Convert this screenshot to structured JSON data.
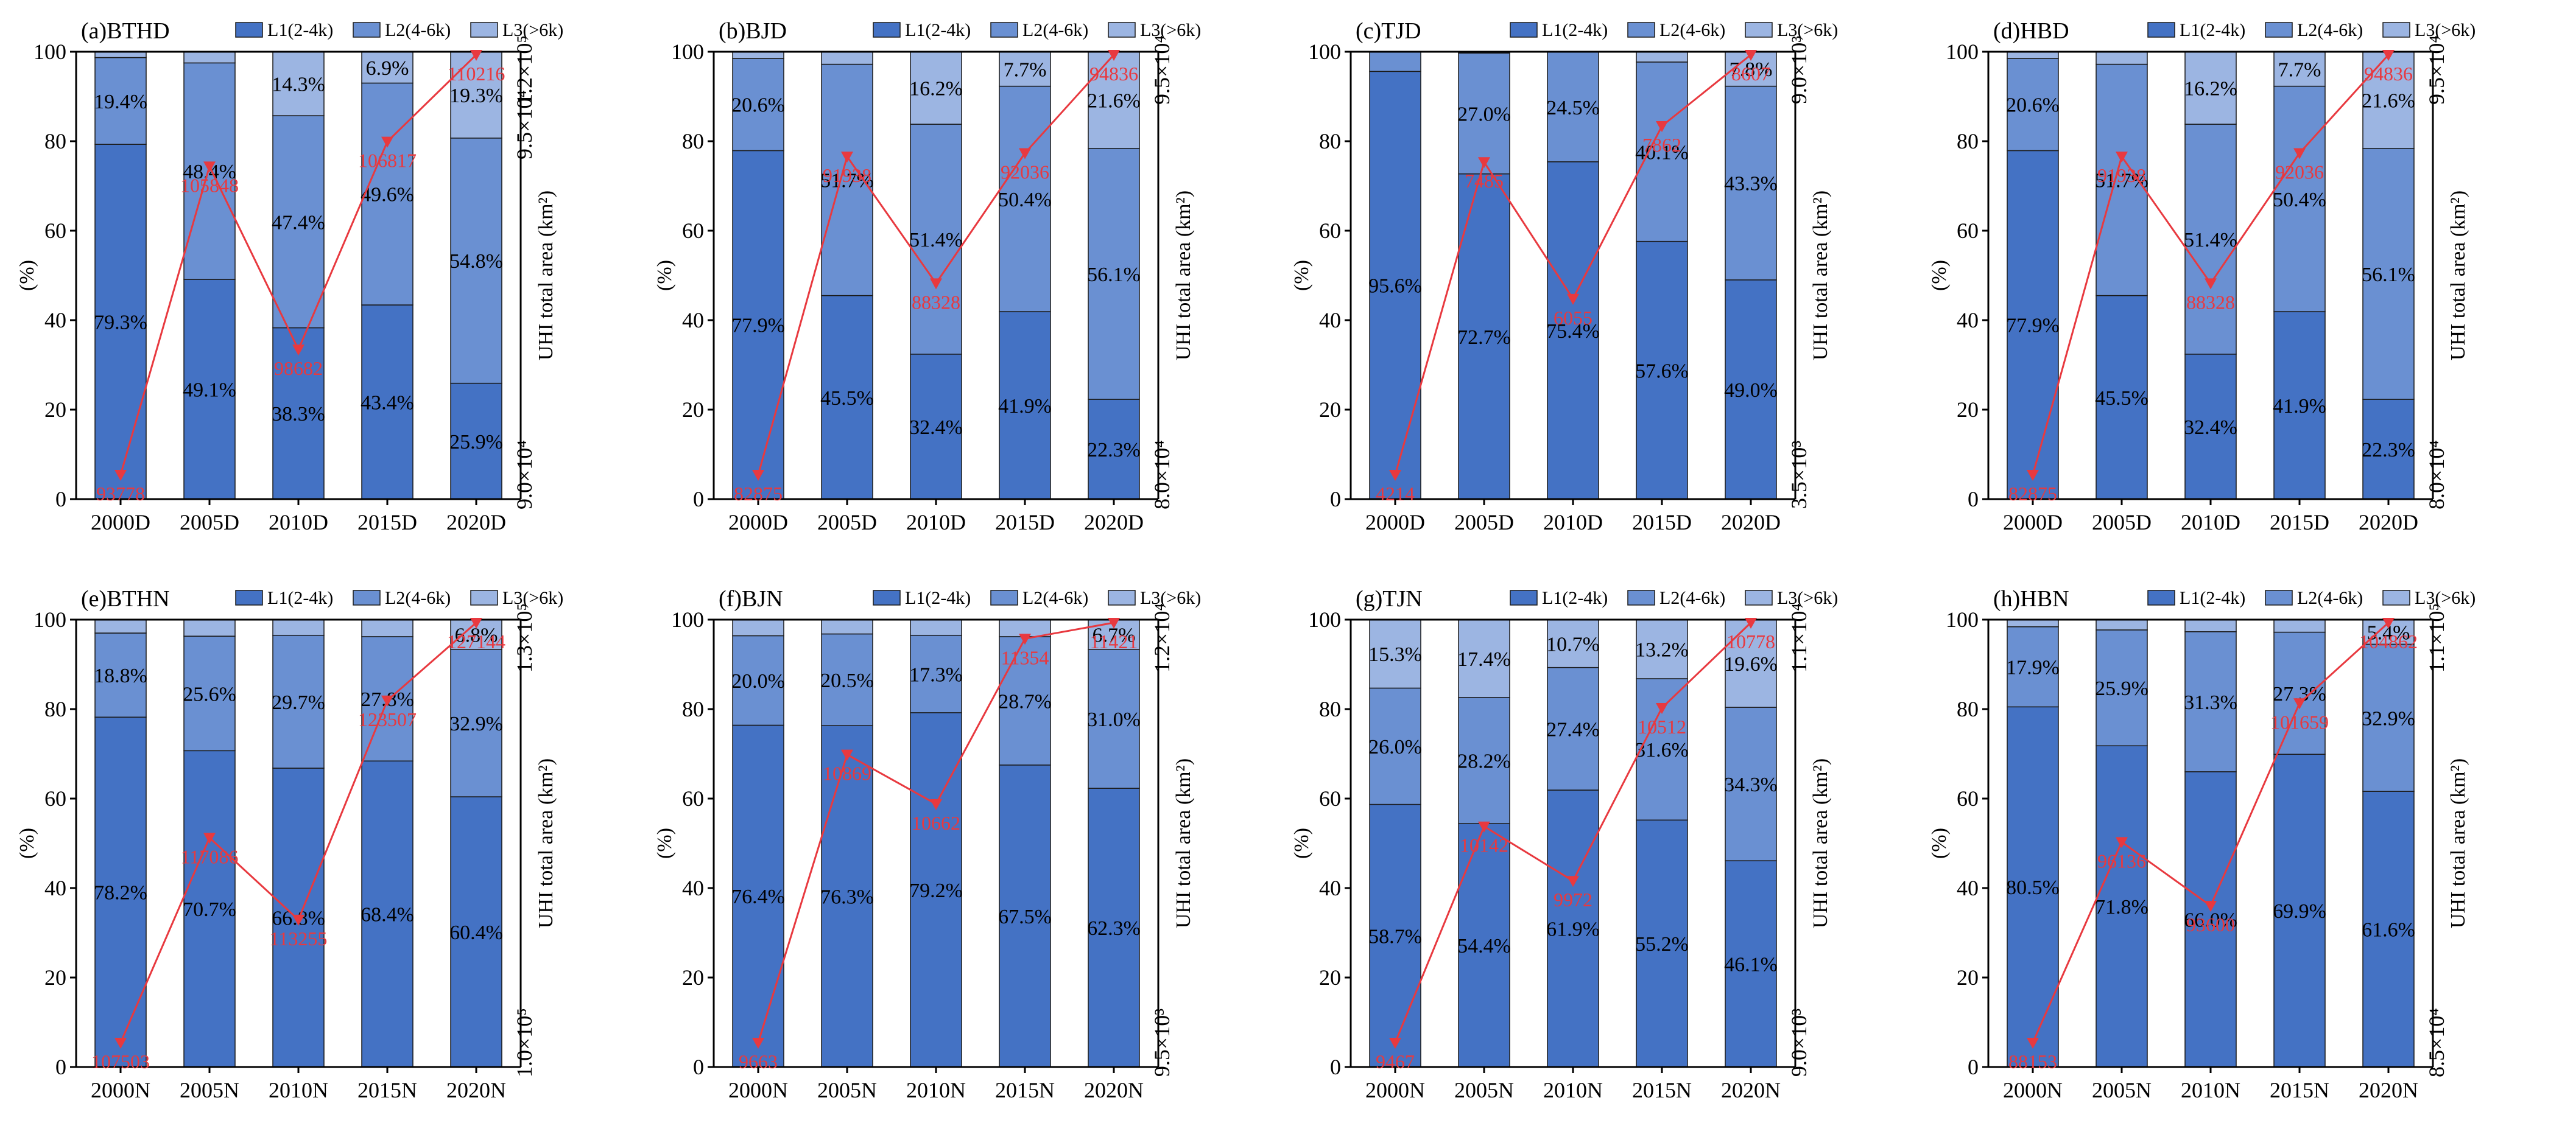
{
  "colors": {
    "L1": "#4472c4",
    "L2": "#6a90d2",
    "L3": "#9cb5e2",
    "line": "#e8393f"
  },
  "y_left_label": "(%)",
  "y_right_label": "UHI total area (km²)",
  "legend": [
    "L1(2-4k)",
    "L2(4-6k)",
    "L3(>6k)"
  ],
  "chart_data": [
    {
      "type": "bar",
      "stacked": true,
      "title": "(a)BTHD",
      "categories": [
        "2000D",
        "2005D",
        "2010D",
        "2015D",
        "2020D"
      ],
      "series": [
        {
          "name": "L1(2-4k)",
          "values": [
            79.3,
            49.1,
            38.3,
            43.4,
            25.9
          ]
        },
        {
          "name": "L2(4-6k)",
          "values": [
            19.4,
            48.4,
            47.4,
            49.6,
            54.8
          ]
        },
        {
          "name": "L3(>6k)",
          "values": [
            1.3,
            2.5,
            14.3,
            6.9,
            19.3
          ]
        }
      ],
      "labels": [
        [
          "79.3%",
          "49.1%",
          "38.3%",
          "43.4%",
          "25.9%"
        ],
        [
          "19.4%",
          "48.4%",
          "47.4%",
          "49.6%",
          "54.8%"
        ],
        [
          "",
          "",
          "14.3%",
          "6.9%",
          "19.3%"
        ]
      ],
      "line": {
        "values": [
          93778,
          105848,
          98682,
          106817,
          110216
        ],
        "labels": [
          "93778",
          "105848",
          "98682",
          "106817",
          "110216"
        ]
      },
      "right_ticks": [
        "9.0×10⁴",
        "9.5×10⁴",
        "1.2×10⁵"
      ],
      "ylim": [
        0,
        100
      ]
    },
    {
      "type": "bar",
      "stacked": true,
      "title": "(b)BJD",
      "categories": [
        "2000D",
        "2005D",
        "2010D",
        "2015D",
        "2020D"
      ],
      "series": [
        {
          "name": "L1(2-4k)",
          "values": [
            77.9,
            45.5,
            32.4,
            41.9,
            22.3
          ]
        },
        {
          "name": "L2(4-6k)",
          "values": [
            20.6,
            51.7,
            51.4,
            50.4,
            56.1
          ]
        },
        {
          "name": "L3(>6k)",
          "values": [
            1.5,
            2.8,
            16.2,
            7.7,
            21.6
          ]
        }
      ],
      "labels": [
        [
          "77.9%",
          "45.5%",
          "32.4%",
          "41.9%",
          "22.3%"
        ],
        [
          "20.6%",
          "51.7%",
          "51.4%",
          "50.4%",
          "56.1%"
        ],
        [
          "",
          "",
          "16.2%",
          "7.7%",
          "21.6%"
        ]
      ],
      "line": {
        "values": [
          82875,
          91938,
          88328,
          92036,
          94836
        ],
        "labels": [
          "82875",
          "91938",
          "88328",
          "92036",
          "94836"
        ]
      },
      "right_ticks": [
        "8.0×10⁴",
        "9.5×10⁴"
      ],
      "ylim": [
        0,
        100
      ]
    },
    {
      "type": "bar",
      "stacked": true,
      "title": "(c)TJD",
      "categories": [
        "2000D",
        "2005D",
        "2010D",
        "2015D",
        "2020D"
      ],
      "series": [
        {
          "name": "L1(2-4k)",
          "values": [
            95.6,
            72.7,
            75.4,
            57.6,
            49.0
          ]
        },
        {
          "name": "L2(4-6k)",
          "values": [
            4.4,
            27.0,
            24.5,
            40.1,
            43.3
          ]
        },
        {
          "name": "L3(>6k)",
          "values": [
            0,
            0.3,
            0.1,
            2.3,
            7.8
          ]
        }
      ],
      "labels": [
        [
          "95.6%",
          "72.7%",
          "75.4%",
          "57.6%",
          "49.0%"
        ],
        [
          "",
          "27.0%",
          "24.5%",
          "40.1%",
          "43.3%"
        ],
        [
          "",
          "",
          "",
          "",
          "7.8%"
        ]
      ],
      "line": {
        "values": [
          4214,
          7485,
          6055,
          7862,
          8607
        ],
        "labels": [
          "4214",
          "7485",
          "6055",
          "7862",
          "8607"
        ]
      },
      "right_ticks": [
        "3.5×10³",
        "9.0×10³"
      ],
      "ylim": [
        0,
        100
      ]
    },
    {
      "type": "bar",
      "stacked": true,
      "title": "(d)HBD",
      "categories": [
        "2000D",
        "2005D",
        "2010D",
        "2015D",
        "2020D"
      ],
      "series": [
        {
          "name": "L1(2-4k)",
          "values": [
            77.9,
            45.5,
            32.4,
            41.9,
            22.3
          ]
        },
        {
          "name": "L2(4-6k)",
          "values": [
            20.6,
            51.7,
            51.4,
            50.4,
            56.1
          ]
        },
        {
          "name": "L3(>6k)",
          "values": [
            1.5,
            2.8,
            16.2,
            7.7,
            21.6
          ]
        }
      ],
      "labels": [
        [
          "77.9%",
          "45.5%",
          "32.4%",
          "41.9%",
          "22.3%"
        ],
        [
          "20.6%",
          "51.7%",
          "51.4%",
          "50.4%",
          "56.1%"
        ],
        [
          "",
          "",
          "16.2%",
          "7.7%",
          "21.6%"
        ]
      ],
      "line": {
        "values": [
          82875,
          91938,
          88328,
          92036,
          94836
        ],
        "labels": [
          "82875",
          "91938",
          "88328",
          "92036",
          "94836"
        ]
      },
      "right_ticks": [
        "8.0×10⁴",
        "9.5×10⁴"
      ],
      "ylim": [
        0,
        100
      ]
    },
    {
      "type": "bar",
      "stacked": true,
      "title": "(e)BTHN",
      "categories": [
        "2000N",
        "2005N",
        "2010N",
        "2015N",
        "2020N"
      ],
      "series": [
        {
          "name": "L1(2-4k)",
          "values": [
            78.2,
            70.7,
            66.8,
            68.4,
            60.4
          ]
        },
        {
          "name": "L2(4-6k)",
          "values": [
            18.8,
            25.6,
            29.7,
            27.8,
            32.9
          ]
        },
        {
          "name": "L3(>6k)",
          "values": [
            3.0,
            3.7,
            3.5,
            3.8,
            6.8
          ]
        }
      ],
      "labels": [
        [
          "78.2%",
          "70.7%",
          "66.8%",
          "68.4%",
          "60.4%"
        ],
        [
          "18.8%",
          "25.6%",
          "29.7%",
          "27.8%",
          "32.9%"
        ],
        [
          "",
          "",
          "",
          "",
          "6.8%"
        ]
      ],
      "line": {
        "values": [
          107503,
          117086,
          113255,
          123507,
          127144
        ],
        "labels": [
          "107503",
          "117086",
          "113255",
          "123507",
          "127144"
        ]
      },
      "right_ticks": [
        "1.0×10⁵",
        "1.3×10⁵"
      ],
      "ylim": [
        0,
        100
      ]
    },
    {
      "type": "bar",
      "stacked": true,
      "title": "(f)BJN",
      "categories": [
        "2000N",
        "2005N",
        "2010N",
        "2015N",
        "2020N"
      ],
      "series": [
        {
          "name": "L1(2-4k)",
          "values": [
            76.4,
            76.3,
            79.2,
            67.5,
            62.3
          ]
        },
        {
          "name": "L2(4-6k)",
          "values": [
            20.0,
            20.5,
            17.3,
            28.7,
            31.0
          ]
        },
        {
          "name": "L3(>6k)",
          "values": [
            3.6,
            3.2,
            3.5,
            3.8,
            6.7
          ]
        }
      ],
      "labels": [
        [
          "76.4%",
          "76.3%",
          "79.2%",
          "67.5%",
          "62.3%"
        ],
        [
          "20.0%",
          "20.5%",
          "17.3%",
          "28.7%",
          "31.0%"
        ],
        [
          "",
          "",
          "",
          "",
          "6.7%"
        ]
      ],
      "line": {
        "values": [
          9663,
          10869,
          10662,
          11354,
          11421
        ],
        "labels": [
          "9663",
          "10869",
          "10662",
          "11354",
          "11421"
        ]
      },
      "right_ticks": [
        "9.5×10³",
        "1.2×10⁴"
      ],
      "ylim": [
        0,
        100
      ]
    },
    {
      "type": "bar",
      "stacked": true,
      "title": "(g)TJN",
      "categories": [
        "2000N",
        "2005N",
        "2010N",
        "2015N",
        "2020N"
      ],
      "series": [
        {
          "name": "L1(2-4k)",
          "values": [
            58.7,
            54.4,
            61.9,
            55.2,
            46.1
          ]
        },
        {
          "name": "L2(4-6k)",
          "values": [
            26.0,
            28.2,
            27.4,
            31.6,
            34.3
          ]
        },
        {
          "name": "L3(>6k)",
          "values": [
            15.3,
            17.4,
            10.7,
            13.2,
            19.6
          ]
        }
      ],
      "labels": [
        [
          "58.7%",
          "54.4%",
          "61.9%",
          "55.2%",
          "46.1%"
        ],
        [
          "26.0%",
          "28.2%",
          "27.4%",
          "31.6%",
          "34.3%"
        ],
        [
          "15.3%",
          "17.4%",
          "10.7%",
          "13.2%",
          "19.6%"
        ]
      ],
      "line": {
        "values": [
          9467,
          10142,
          9972,
          10512,
          10778
        ],
        "labels": [
          "9467",
          "10142",
          "9972",
          "10512",
          "10778"
        ]
      },
      "right_ticks": [
        "9.0×10³",
        "1.1×10⁴"
      ],
      "ylim": [
        0,
        100
      ]
    },
    {
      "type": "bar",
      "stacked": true,
      "title": "(h)HBN",
      "categories": [
        "2000N",
        "2005N",
        "2010N",
        "2015N",
        "2020N"
      ],
      "series": [
        {
          "name": "L1(2-4k)",
          "values": [
            80.5,
            71.8,
            66.0,
            69.9,
            61.6
          ]
        },
        {
          "name": "L2(4-6k)",
          "values": [
            17.9,
            25.9,
            31.3,
            27.3,
            32.9
          ]
        },
        {
          "name": "L3(>6k)",
          "values": [
            1.6,
            2.3,
            2.7,
            2.8,
            5.4
          ]
        }
      ],
      "labels": [
        [
          "80.5%",
          "71.8%",
          "66.0%",
          "69.9%",
          "61.6%"
        ],
        [
          "17.9%",
          "25.9%",
          "31.3%",
          "27.3%",
          "32.9%"
        ],
        [
          "",
          "",
          "",
          "",
          "5.4%"
        ]
      ],
      "line": {
        "values": [
          88153,
          96136,
          93600,
          101659,
          104862
        ],
        "labels": [
          "88153",
          "96136",
          "93600",
          "101659",
          "104862"
        ]
      },
      "right_ticks": [
        "8.5×10⁴",
        "1.1×10⁵"
      ],
      "ylim": [
        0,
        100
      ]
    }
  ]
}
